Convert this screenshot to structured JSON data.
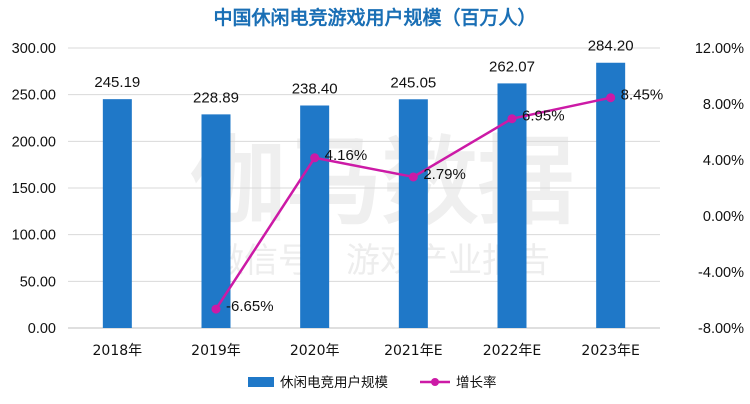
{
  "chart_data": {
    "type": "bar+line",
    "title": "中国休闲电竞游戏用户规模（百万人）",
    "categories": [
      "2018年",
      "2019年",
      "2020年",
      "2021年E",
      "2022年E",
      "2023年E"
    ],
    "series": [
      {
        "name": "休闲电竞用户规模",
        "type": "bar",
        "axis": "left",
        "values": [
          245.19,
          228.89,
          238.4,
          245.05,
          262.07,
          284.2
        ],
        "labels": [
          "245.19",
          "228.89",
          "238.40",
          "245.05",
          "262.07",
          "284.20"
        ]
      },
      {
        "name": "增长率",
        "type": "line",
        "axis": "right",
        "values": [
          null,
          -6.65,
          4.16,
          2.79,
          6.95,
          8.45
        ],
        "labels": [
          "",
          "-6.65%",
          "4.16%",
          "2.79%",
          "6.95%",
          "8.45%"
        ]
      }
    ],
    "y_left": {
      "min": 0,
      "max": 300,
      "ticks": [
        0,
        50,
        100,
        150,
        200,
        250,
        300
      ],
      "tick_labels": [
        "0.00",
        "50.00",
        "100.00",
        "150.00",
        "200.00",
        "250.00",
        "300.00"
      ]
    },
    "y_right": {
      "min": -8,
      "max": 12,
      "ticks": [
        -8,
        -4,
        0,
        4,
        8,
        12
      ],
      "tick_labels": [
        "-8.00%",
        "-4.00%",
        "0.00%",
        "4.00%",
        "8.00%",
        "12.00%"
      ]
    },
    "grid": true,
    "legend_position": "bottom",
    "watermark": [
      "伽马数据",
      "微信号：游戏产业报告"
    ],
    "colors": {
      "bar": "#1f78c8",
      "line": "#cc1aa6",
      "title": "#1a6fb5",
      "grid": "#d9d9d9"
    }
  }
}
